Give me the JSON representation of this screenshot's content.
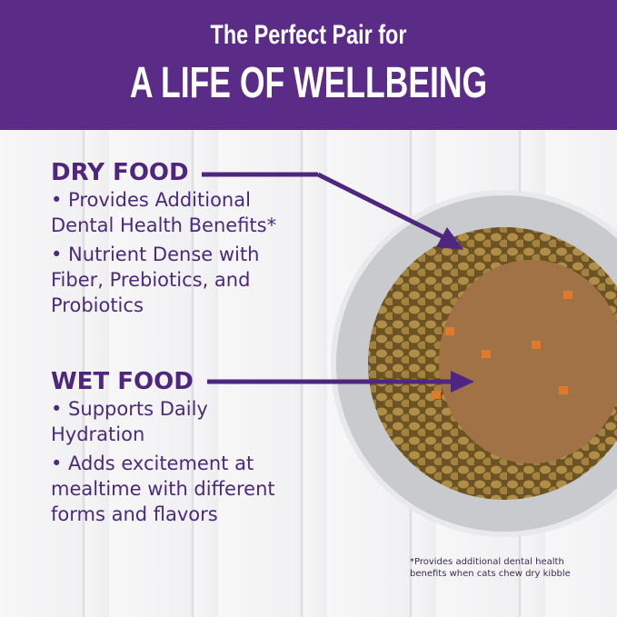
{
  "header": {
    "line1": "The Perfect Pair for",
    "line2": "A LIFE OF WELLBEING"
  },
  "dry": {
    "title": "DRY FOOD",
    "bullets": [
      "• Provides Additional Dental Health Benefits*",
      "• Nutrient Dense with Fiber, Prebiotics, and Probiotics"
    ]
  },
  "wet": {
    "title": "WET FOOD",
    "bullets": [
      "• Supports Daily Hydration",
      "• Adds excitement at mealtime with different forms and flavors"
    ]
  },
  "footnote": "*Provides additional dental health benefits when cats chew dry kibble",
  "colors": {
    "brand_purple": "#5b2c87",
    "text_purple": "#4e2680"
  }
}
